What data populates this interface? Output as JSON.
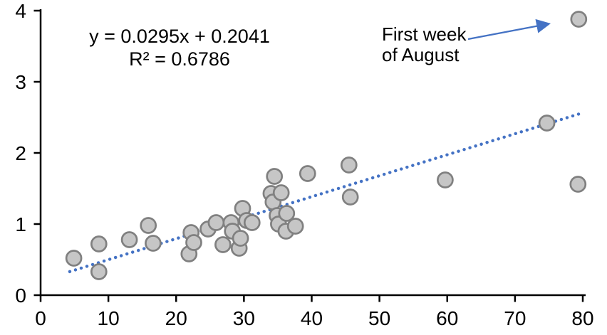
{
  "chart_data": {
    "type": "scatter",
    "title": "",
    "xlabel": "",
    "ylabel": "",
    "xlim": [
      0,
      80
    ],
    "ylim": [
      0,
      4
    ],
    "x_ticks": [
      0,
      10,
      20,
      30,
      40,
      50,
      60,
      70,
      80
    ],
    "y_ticks": [
      0,
      1,
      2,
      3,
      4
    ],
    "grid": false,
    "legend": "none",
    "points": [
      [
        4.9,
        0.52
      ],
      [
        8.6,
        0.72
      ],
      [
        8.6,
        0.33
      ],
      [
        13.1,
        0.78
      ],
      [
        15.9,
        0.98
      ],
      [
        16.6,
        0.73
      ],
      [
        21.9,
        0.58
      ],
      [
        22.2,
        0.88
      ],
      [
        22.6,
        0.74
      ],
      [
        24.7,
        0.93
      ],
      [
        25.9,
        1.02
      ],
      [
        26.9,
        0.71
      ],
      [
        28.1,
        1.02
      ],
      [
        28.3,
        0.9
      ],
      [
        29.3,
        0.66
      ],
      [
        29.5,
        0.8
      ],
      [
        29.8,
        1.22
      ],
      [
        30.4,
        1.05
      ],
      [
        31.2,
        1.02
      ],
      [
        34.0,
        1.43
      ],
      [
        34.3,
        1.31
      ],
      [
        34.5,
        1.67
      ],
      [
        34.9,
        1.12
      ],
      [
        35.1,
        1.0
      ],
      [
        35.5,
        1.44
      ],
      [
        36.3,
        1.15
      ],
      [
        36.2,
        0.9
      ],
      [
        37.6,
        0.97
      ],
      [
        39.4,
        1.71
      ],
      [
        45.5,
        1.83
      ],
      [
        45.7,
        1.38
      ],
      [
        59.7,
        1.62
      ],
      [
        74.7,
        2.42
      ],
      [
        79.3,
        1.56
      ],
      [
        79.4,
        3.88
      ]
    ],
    "trendline": {
      "style": "dotted",
      "slope": 0.0295,
      "intercept": 0.2041,
      "x_start": 4.3,
      "x_end": 79.8
    },
    "equation_line1": "y = 0.0295x + 0.2041",
    "equation_line2": "R² = 0.6786",
    "r_squared": 0.6786,
    "annotation": {
      "line1": "First week",
      "line2": "of August",
      "target_point": [
        79.4,
        3.88
      ]
    },
    "colors": {
      "point_fill": "#C6C6C6",
      "point_stroke": "#808080",
      "trendline": "#4472C4",
      "arrow": "#4472C4",
      "axis": "#000000",
      "text": "#000000"
    }
  }
}
